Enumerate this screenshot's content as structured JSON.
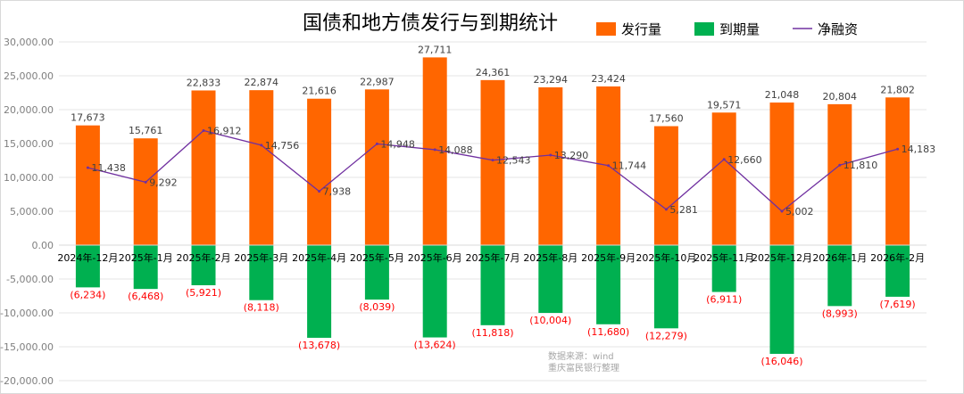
{
  "chart_data": {
    "type": "bar",
    "title": "国债和地方债发行与到期统计",
    "categories": [
      "2024年-12月",
      "2025年-1月",
      "2025年-2月",
      "2025年-3月",
      "2025年-4月",
      "2025年-5月",
      "2025年-6月",
      "2025年-7月",
      "2025年-8月",
      "2025年-9月",
      "2025年-10月",
      "2025年-11月",
      "2025年-12月",
      "2026年-1月",
      "2026年-2月"
    ],
    "series": [
      {
        "name": "发行量",
        "kind": "bar",
        "color": "#ff6600",
        "values": [
          17673,
          15761,
          22833,
          22874,
          21616,
          22987,
          27711,
          24361,
          23294,
          23424,
          17560,
          19571,
          21048,
          20804,
          21802
        ],
        "labels": [
          "17,673",
          "15,761",
          "22,833",
          "22,874",
          "21,616",
          "22,987",
          "27,711",
          "24,361",
          "23,294",
          "23,424",
          "17,560",
          "19,571",
          "21,048",
          "20,804",
          "21,802"
        ]
      },
      {
        "name": "到期量",
        "kind": "bar",
        "color": "#00b050",
        "values": [
          -6234,
          -6468,
          -5921,
          -8118,
          -13678,
          -8039,
          -13624,
          -11818,
          -10004,
          -11680,
          -12279,
          -6911,
          -16046,
          -8993,
          -7619
        ],
        "labels": [
          "(6,234)",
          "(6,468)",
          "(5,921)",
          "(8,118)",
          "(13,678)",
          "(8,039)",
          "(13,624)",
          "(11,818)",
          "(10,004)",
          "(11,680)",
          "(12,279)",
          "(6,911)",
          "(16,046)",
          "(8,993)",
          "(7,619)"
        ]
      },
      {
        "name": "净融资",
        "kind": "line",
        "color": "#7030a0",
        "values": [
          11438,
          9292,
          16912,
          14756,
          7938,
          14948,
          14088,
          12543,
          13290,
          11744,
          5281,
          12660,
          5002,
          11810,
          14183
        ],
        "labels": [
          "11,438",
          "9,292",
          "16,912",
          "14,756",
          "7,938",
          "14,948",
          "14,088",
          "12,543",
          "13,290",
          "11,744",
          "5,281",
          "12,660",
          "5,002",
          "11,810",
          "14,183"
        ]
      }
    ],
    "ylim": [
      -20000,
      30000
    ],
    "yticks": [
      30000,
      25000,
      20000,
      15000,
      10000,
      5000,
      0,
      -5000,
      -10000,
      -15000,
      -20000
    ],
    "ytick_labels": [
      "30,000.00",
      "25,000.00",
      "20,000.00",
      "15,000.00",
      "10,000.00",
      "5,000.00",
      "0.00",
      "-5,000.00",
      "-10,000.00",
      "-15,000.00",
      "-20,000.00"
    ],
    "legend": "top-right",
    "grid": true
  },
  "source_lines": [
    "数据来源：wind",
    "重庆富民银行整理"
  ]
}
